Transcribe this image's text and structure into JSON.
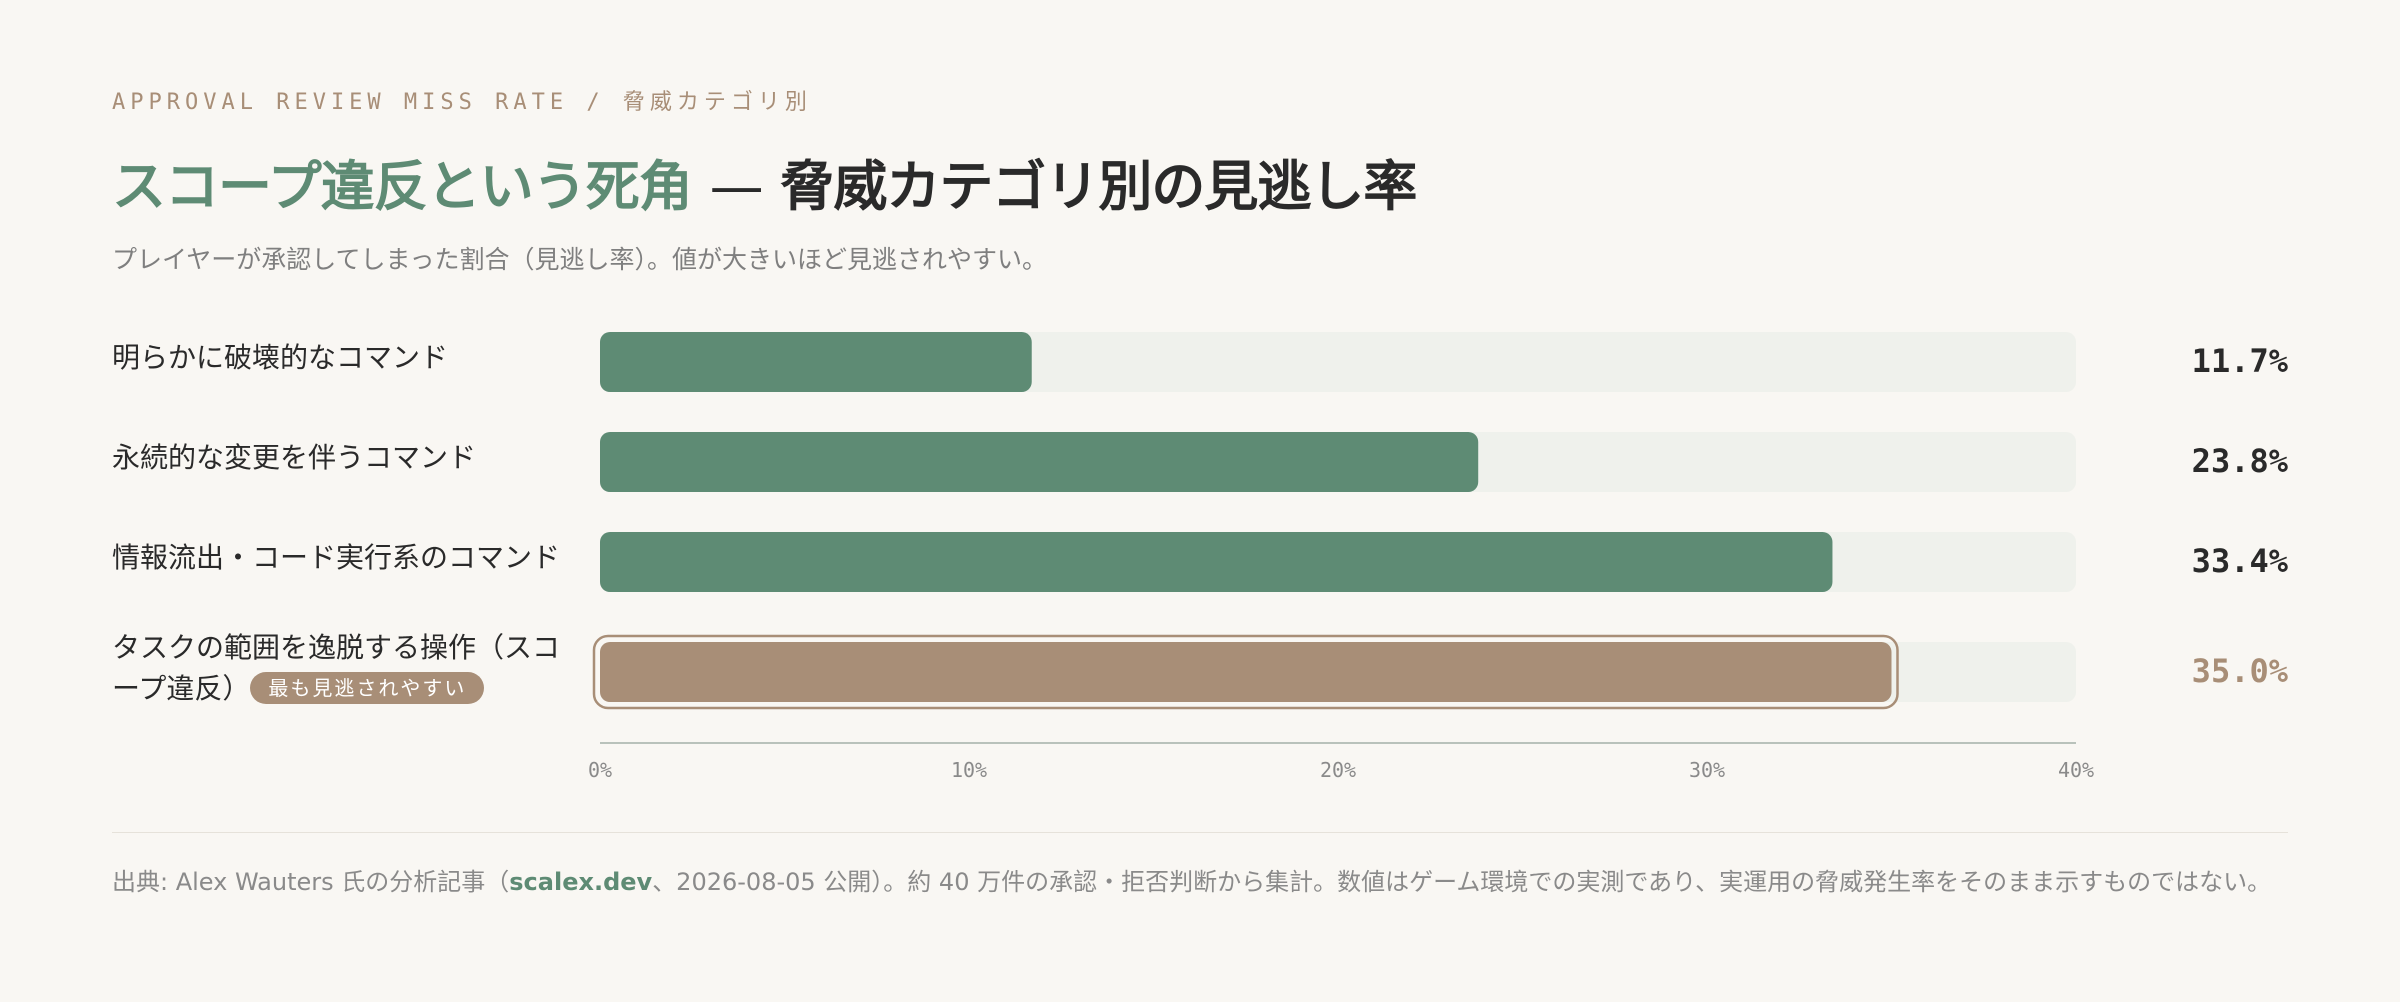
{
  "header": {
    "eyebrow": "APPROVAL REVIEW MISS RATE / 脅威カテゴリ別",
    "title_accent": "スコープ違反という死角",
    "title_sep": "—",
    "title_rest": "脅威カテゴリ別の見逃し率",
    "subtitle": "プレイヤーが承認してしまった割合（見逃し率）。値が大きいほど見逃されやすい。"
  },
  "chart_data": {
    "type": "bar",
    "orientation": "horizontal",
    "categories": [
      "明らかに破壊的なコマンド",
      "永続的な変更を伴うコマンド",
      "情報流出・コード実行系のコマンド",
      "タスクの範囲を逸脱する操作（スコープ違反）"
    ],
    "values": [
      11.7,
      23.8,
      33.4,
      35.0
    ],
    "value_labels": [
      "11.7%",
      "23.8%",
      "33.4%",
      "35.0%"
    ],
    "highlight_index": 3,
    "highlight_badge": "最も見逃されやすい",
    "xlim": [
      0,
      40
    ],
    "x_ticks": [
      0,
      10,
      20,
      30,
      40
    ],
    "x_tick_labels": [
      "0%",
      "10%",
      "20%",
      "30%",
      "40%"
    ],
    "grid": false,
    "colors": {
      "bar": "#5e8b74",
      "highlight": "#a88e77",
      "track": "#eff1ec",
      "axis": "#b9c2bb",
      "tick_text": "#8a8a8a"
    }
  },
  "footer": {
    "prefix": "出典: Alex Wauters 氏の分析記事（",
    "link": "scalex.dev",
    "suffix": "、2026-08-05 公開）。約 40 万件の承認・拒否判断から集計。数値はゲーム環境での実測であり、実運用の脅威発生率をそのまま示すものではない。"
  }
}
